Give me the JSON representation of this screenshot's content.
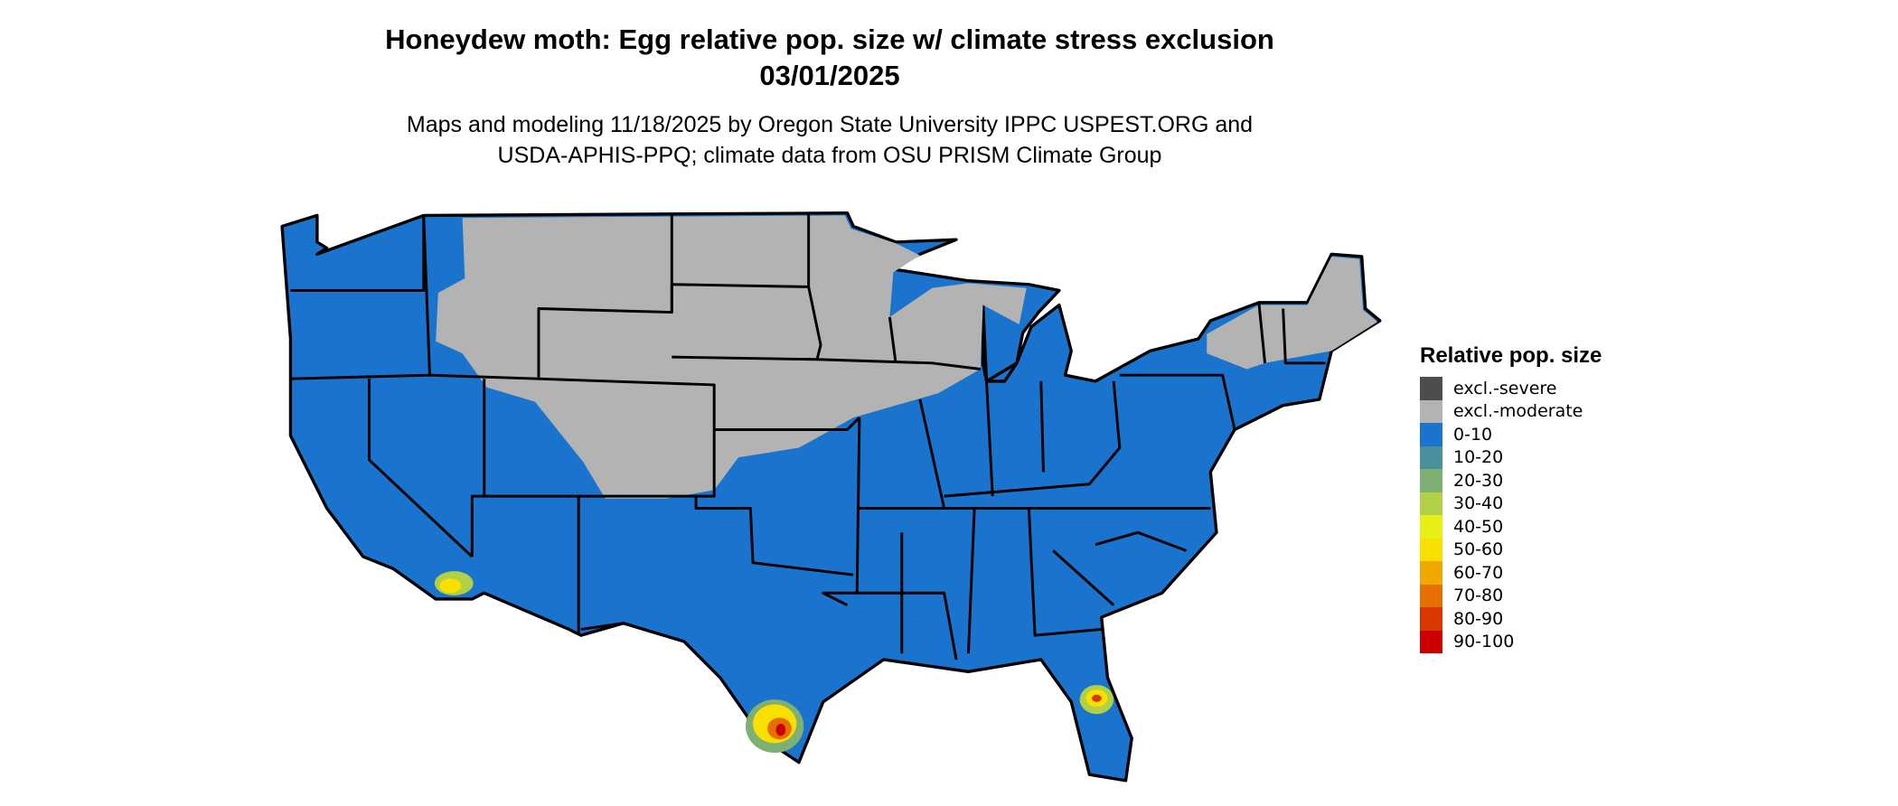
{
  "title": "Honeydew moth: Egg relative pop. size w/ climate stress exclusion",
  "date": "03/01/2025",
  "subtitle_line1": "Maps and modeling 11/18/2025 by Oregon State University IPPC USPEST.ORG and",
  "subtitle_line2": "USDA-APHIS-PPQ; climate data from OSU PRISM Climate Group",
  "legend": {
    "title": "Relative pop. size",
    "items": [
      {
        "label": "excl.-severe",
        "color": "#4d4d4d"
      },
      {
        "label": "excl.-moderate",
        "color": "#b3b3b3"
      },
      {
        "label": "0-10",
        "color": "#1a73cc"
      },
      {
        "label": "10-20",
        "color": "#4a909c"
      },
      {
        "label": "20-30",
        "color": "#7db072"
      },
      {
        "label": "30-40",
        "color": "#b2d046"
      },
      {
        "label": "40-50",
        "color": "#e6f016"
      },
      {
        "label": "50-60",
        "color": "#f9e000"
      },
      {
        "label": "60-70",
        "color": "#f0a800"
      },
      {
        "label": "70-80",
        "color": "#e57000"
      },
      {
        "label": "80-90",
        "color": "#d93800"
      },
      {
        "label": "90-100",
        "color": "#cc0000"
      }
    ]
  }
}
